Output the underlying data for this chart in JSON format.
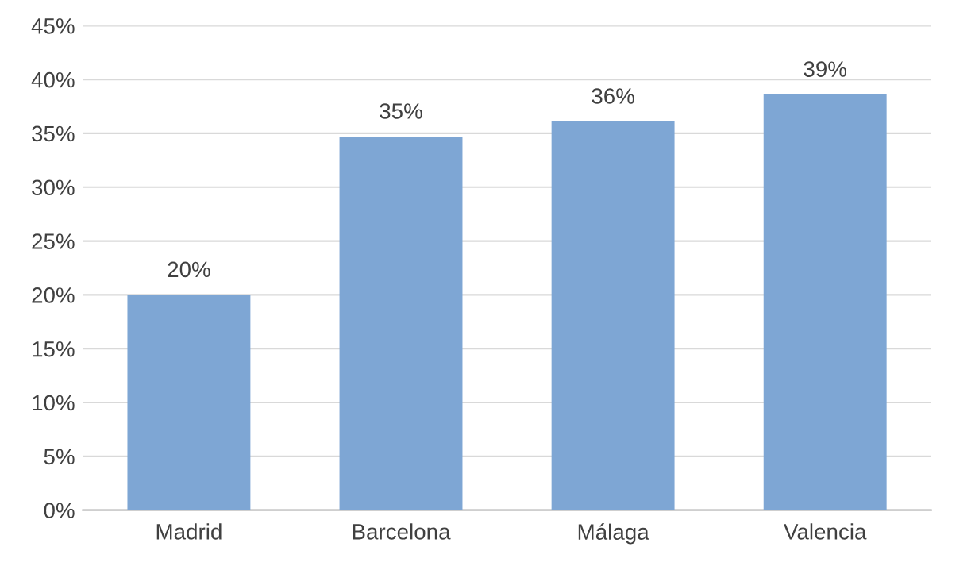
{
  "chart_data": {
    "type": "bar",
    "categories": [
      "Madrid",
      "Barcelona",
      "Málaga",
      "Valencia"
    ],
    "values": [
      20,
      34.7,
      36.1,
      38.6
    ],
    "value_labels": [
      "20%",
      "35%",
      "36%",
      "39%"
    ],
    "color": "#7ea6d4",
    "ylim": [
      0,
      45
    ],
    "yticks": [
      {
        "value": 0,
        "label": "0%"
      },
      {
        "value": 5,
        "label": "5%"
      },
      {
        "value": 10,
        "label": "10%"
      },
      {
        "value": 15,
        "label": "15%"
      },
      {
        "value": 20,
        "label": "20%"
      },
      {
        "value": 25,
        "label": "25%"
      },
      {
        "value": 30,
        "label": "30%"
      },
      {
        "value": 35,
        "label": "35%"
      },
      {
        "value": 40,
        "label": "40%"
      },
      {
        "value": 45,
        "label": "45%"
      }
    ],
    "grid": "y"
  }
}
